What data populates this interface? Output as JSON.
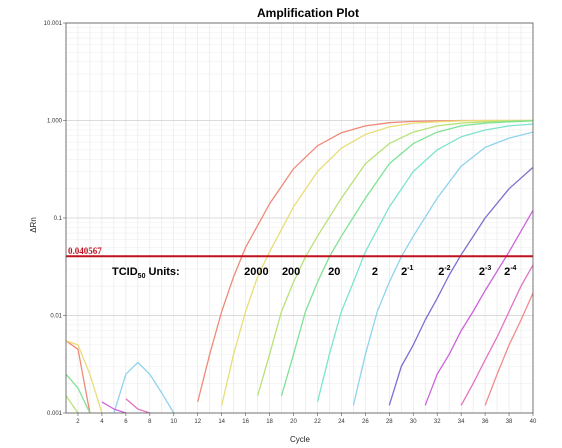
{
  "chart_data": {
    "type": "line",
    "title": "Amplification Plot",
    "xlabel": "Cycle",
    "ylabel": "ΔRn",
    "x_ticks": [
      2,
      4,
      6,
      8,
      10,
      12,
      14,
      16,
      18,
      20,
      22,
      24,
      26,
      28,
      30,
      32,
      34,
      36,
      38,
      40
    ],
    "xlim": [
      1,
      40
    ],
    "y_scale": "log",
    "ylim": [
      0.001,
      10.001
    ],
    "y_tick_values": [
      0.001,
      0.01,
      0.1,
      1,
      10
    ],
    "y_tick_labels": [
      "0.001",
      "0.01",
      "0.1",
      "1.000",
      "10.001"
    ],
    "grid": true,
    "threshold": {
      "value": 0.040567,
      "label": "0.040567",
      "color": "#c0111f"
    },
    "annotation": {
      "label_main": "TCID",
      "label_sub": "50",
      "label_suffix": " Units:",
      "dilutions": [
        {
          "base": "2000",
          "exp": "",
          "x": 16.9
        },
        {
          "base": "200",
          "exp": "",
          "x": 19.8
        },
        {
          "base": "20",
          "exp": "",
          "x": 23.4
        },
        {
          "base": "2",
          "exp": "",
          "x": 26.8
        },
        {
          "base": "2",
          "exp": "-1",
          "x": 29.5
        },
        {
          "base": "2",
          "exp": "-2",
          "x": 32.6
        },
        {
          "base": "2",
          "exp": "-3",
          "x": 36.0
        },
        {
          "base": "2",
          "exp": "-4",
          "x": 38.1
        }
      ]
    },
    "series": [
      {
        "color": "#ef8a78",
        "x": [
          12,
          13,
          14,
          15,
          16,
          18,
          20,
          22,
          24,
          26,
          28,
          30,
          32,
          34,
          36,
          38,
          40
        ],
        "y": [
          0.0013,
          0.004,
          0.011,
          0.025,
          0.05,
          0.14,
          0.32,
          0.55,
          0.75,
          0.88,
          0.95,
          0.98,
          0.99,
          1.0,
          1.0,
          1.0,
          1.0
        ]
      },
      {
        "color": "#e9dd78",
        "x": [
          14,
          15,
          16,
          17,
          18,
          20,
          22,
          24,
          26,
          28,
          30,
          32,
          34,
          36,
          38,
          40
        ],
        "y": [
          0.0012,
          0.004,
          0.011,
          0.025,
          0.045,
          0.13,
          0.3,
          0.52,
          0.72,
          0.86,
          0.94,
          0.97,
          0.99,
          1.0,
          1.0,
          1.0
        ]
      },
      {
        "color": "#b7e277",
        "x": [
          17,
          18,
          19,
          20,
          21,
          22,
          24,
          26,
          28,
          30,
          32,
          34,
          36,
          38,
          40
        ],
        "y": [
          0.0015,
          0.004,
          0.011,
          0.022,
          0.04,
          0.065,
          0.16,
          0.36,
          0.58,
          0.76,
          0.88,
          0.94,
          0.97,
          0.99,
          1.0
        ]
      },
      {
        "color": "#7ee294",
        "x": [
          19,
          20,
          21,
          22,
          23,
          24,
          26,
          28,
          30,
          32,
          34,
          36,
          38,
          40
        ],
        "y": [
          0.0015,
          0.004,
          0.011,
          0.022,
          0.04,
          0.065,
          0.16,
          0.36,
          0.58,
          0.76,
          0.88,
          0.94,
          0.97,
          0.99
        ]
      },
      {
        "color": "#7ee3cd",
        "x": [
          22,
          23,
          24,
          25,
          26,
          28,
          30,
          32,
          34,
          36,
          38,
          40
        ],
        "y": [
          0.0013,
          0.004,
          0.011,
          0.022,
          0.045,
          0.13,
          0.3,
          0.5,
          0.68,
          0.8,
          0.88,
          0.92
        ]
      },
      {
        "color": "#8fd3ec",
        "x": [
          25,
          26,
          27,
          28,
          29,
          30,
          32,
          34,
          36,
          38,
          40
        ],
        "y": [
          0.0012,
          0.004,
          0.011,
          0.022,
          0.04,
          0.065,
          0.16,
          0.34,
          0.53,
          0.66,
          0.76
        ]
      },
      {
        "color": "#7d6fd2",
        "x": [
          28,
          29,
          30,
          31,
          32,
          33,
          34,
          36,
          38,
          40
        ],
        "y": [
          0.0012,
          0.003,
          0.005,
          0.009,
          0.015,
          0.026,
          0.042,
          0.1,
          0.2,
          0.33
        ]
      },
      {
        "color": "#cd63dc",
        "x": [
          31,
          32,
          33,
          34,
          35,
          36,
          38,
          40
        ],
        "y": [
          0.0012,
          0.0025,
          0.004,
          0.007,
          0.011,
          0.018,
          0.045,
          0.12
        ]
      },
      {
        "color": "#e373c1",
        "x": [
          34,
          35,
          36,
          37,
          38,
          39,
          40
        ],
        "y": [
          0.0012,
          0.002,
          0.0035,
          0.006,
          0.011,
          0.02,
          0.033
        ]
      },
      {
        "color": "#f28b8b",
        "x": [
          36,
          37,
          38,
          39,
          40
        ],
        "y": [
          0.0012,
          0.0025,
          0.005,
          0.009,
          0.017
        ]
      },
      {
        "color": "#ef8a78",
        "x": [
          1,
          2,
          3
        ],
        "y": [
          0.0055,
          0.0045,
          0.001
        ]
      },
      {
        "color": "#e9dd78",
        "x": [
          1,
          2,
          3,
          4
        ],
        "y": [
          0.0055,
          0.005,
          0.0025,
          0.001
        ]
      },
      {
        "color": "#7ee294",
        "x": [
          1,
          2,
          3
        ],
        "y": [
          0.0025,
          0.0018,
          0.001
        ]
      },
      {
        "color": "#b7e277",
        "x": [
          1,
          2
        ],
        "y": [
          0.0015,
          0.001
        ]
      },
      {
        "color": "#8fd3ec",
        "x": [
          5,
          6,
          7,
          8,
          9,
          10
        ],
        "y": [
          0.001,
          0.0025,
          0.0033,
          0.0025,
          0.0016,
          0.001
        ]
      },
      {
        "color": "#cd63dc",
        "x": [
          4,
          5,
          6
        ],
        "y": [
          0.0013,
          0.0011,
          0.001
        ]
      },
      {
        "color": "#e373c1",
        "x": [
          6,
          7,
          8
        ],
        "y": [
          0.0014,
          0.0011,
          0.001
        ]
      }
    ]
  }
}
